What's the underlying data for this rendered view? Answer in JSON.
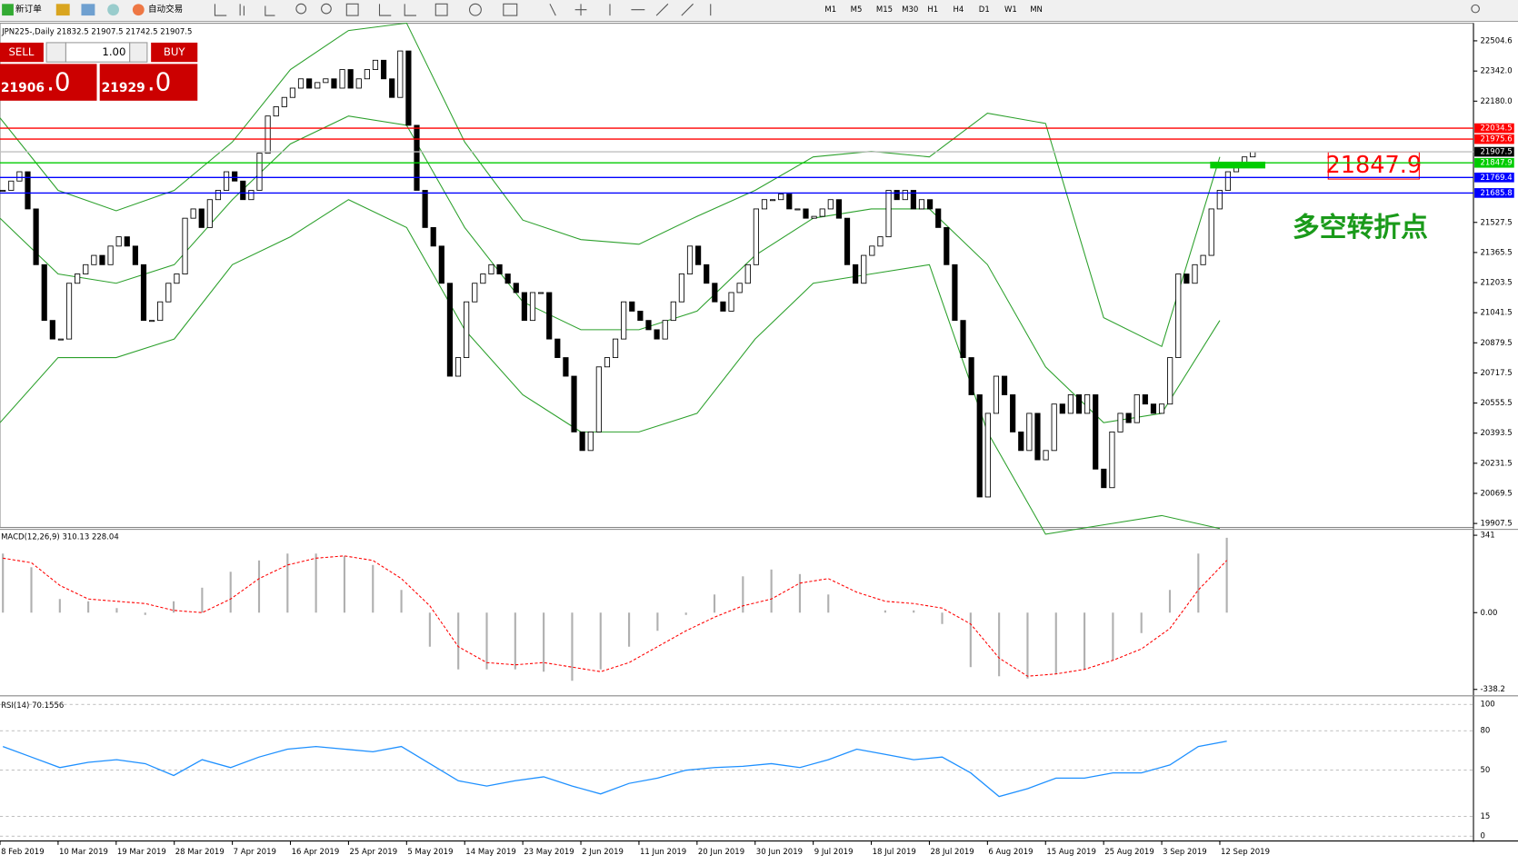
{
  "toolbar": {
    "new_order": "新订单",
    "auto_trading": "自动交易",
    "timeframes": [
      "M1",
      "M5",
      "M15",
      "M30",
      "H1",
      "H4",
      "D1",
      "W1",
      "MN"
    ]
  },
  "trade_panel": {
    "sell": "SELL",
    "buy": "BUY",
    "lot": "1.00",
    "sell_price": "21906",
    "sell_frac": ".0",
    "buy_price": "21929",
    "buy_frac": ".0"
  },
  "chart_data": {
    "type": "candlestick",
    "header": "JPN225-,Daily  21832.5 21907.5 21742.5 21907.5",
    "closes": [
      21700,
      21750,
      21800,
      21600,
      21300,
      21000,
      20900,
      20900,
      21200,
      21250,
      21300,
      21350,
      21300,
      21400,
      21450,
      21400,
      21300,
      21000,
      21000,
      21100,
      21200,
      21250,
      21550,
      21600,
      21500,
      21650,
      21700,
      21800,
      21750,
      21650,
      21700,
      21900,
      22100,
      22150,
      22200,
      22250,
      22300,
      22250,
      22280,
      22300,
      22250,
      22350,
      22250,
      22300,
      22350,
      22400,
      22300,
      22200,
      22450,
      22050,
      21700,
      21500,
      21400,
      21200,
      20700,
      20800,
      21100,
      21200,
      21250,
      21300,
      21250,
      21200,
      21150,
      21000,
      21150,
      21150,
      20900,
      20800,
      20700,
      20400,
      20300,
      20400,
      20750,
      20800,
      20900,
      21100,
      21050,
      21000,
      20950,
      20900,
      21000,
      21100,
      21250,
      21400,
      21300,
      21200,
      21100,
      21050,
      21150,
      21200,
      21300,
      21600,
      21650,
      21650,
      21680,
      21600,
      21600,
      21550,
      21560,
      21600,
      21650,
      21550,
      21300,
      21200,
      21350,
      21400,
      21450,
      21700,
      21650,
      21700,
      21600,
      21650,
      21600,
      21500,
      21300,
      21000,
      20800,
      20600,
      20050,
      20500,
      20700,
      20600,
      20400,
      20300,
      20500,
      20250,
      20300,
      20550,
      20500,
      20600,
      20500,
      20600,
      20200,
      20100,
      20400,
      20500,
      20450,
      20600,
      20550,
      20500,
      20550,
      20800,
      21250,
      21200,
      21300,
      21350,
      21600,
      21700,
      21800,
      21850,
      21880,
      21907.5
    ],
    "bands": {
      "upper": [
        22090,
        21700,
        21590,
        21700,
        21960,
        22350,
        22560,
        22600,
        21960,
        21540,
        21435,
        21410,
        21560,
        21700,
        21880,
        21910,
        21880,
        22115,
        22060,
        21015,
        20860,
        21880
      ],
      "middle": [
        21550,
        21250,
        21200,
        21300,
        21650,
        21950,
        22100,
        22050,
        21500,
        21100,
        20950,
        20950,
        21050,
        21350,
        21550,
        21600,
        21600,
        21300,
        20750,
        20450,
        20500,
        21000
      ],
      "lower": [
        20450,
        20800,
        20800,
        20900,
        21300,
        21450,
        21650,
        21500,
        20950,
        20600,
        20400,
        20400,
        20500,
        20900,
        21200,
        21250,
        21300,
        20400,
        19850,
        19900,
        19950,
        19880
      ],
      "color": "#2ca02c"
    },
    "ylim": [
      19886,
      22599
    ],
    "yticks": [
      22504.6,
      {
        "value": 22342,
        "label": "22342.0"
      },
      {
        "value": 22180,
        "label": "22180.0"
      },
      21527.5,
      21365.5,
      21203.5,
      21041.5,
      20879.5,
      20717.5,
      20555.5,
      20393.5,
      20231.5,
      20069.5,
      19907.5
    ],
    "levels": [
      {
        "value": 22034.5,
        "color": "#ff0000"
      },
      {
        "value": 21975.6,
        "color": "#ff0000"
      },
      {
        "value": 21907.5,
        "color": "#000000"
      },
      {
        "value": 21847.9,
        "color": "#00cc00"
      },
      {
        "value": 21769.4,
        "color": "#0000ff"
      },
      {
        "value": 21685.8,
        "color": "#0000ff"
      }
    ],
    "note": "多空转折点",
    "dates": [
      "8 Feb 2019",
      "10 Mar 2019",
      "19 Mar 2019",
      "28 Mar 2019",
      "7 Apr 2019",
      "16 Apr 2019",
      "25 Apr 2019",
      "5 May 2019",
      "14 May 2019",
      "23 May 2019",
      "2 Jun 2019",
      "11 Jun 2019",
      "20 Jun 2019",
      "30 Jun 2019",
      "9 Jul 2019",
      "18 Jul 2019",
      "28 Jul 2019",
      "6 Aug 2019",
      "15 Aug 2019",
      "25 Aug 2019",
      "3 Sep 2019",
      "12 Sep 2019"
    ],
    "macd": {
      "label": "MACD(12,26,9) 310.13 228.04",
      "ylim": [
        -358,
        354
      ],
      "yticks": [
        341,
        {
          "value": 0,
          "label": "0.00"
        },
        -338.2
      ],
      "hist": [
        260,
        200,
        60,
        50,
        20,
        -10,
        50,
        110,
        180,
        230,
        260,
        260,
        250,
        210,
        100,
        -150,
        -250,
        -250,
        -250,
        -260,
        -300,
        -250,
        -150,
        -80,
        -10,
        80,
        160,
        190,
        170,
        80,
        0,
        10,
        10,
        -50,
        -240,
        -280,
        -290,
        -270,
        -250,
        -210,
        -90,
        100,
        260,
        330
      ],
      "signal": [
        240,
        220,
        120,
        60,
        50,
        40,
        10,
        0,
        60,
        150,
        210,
        240,
        250,
        230,
        150,
        30,
        -150,
        -220,
        -230,
        -220,
        -240,
        -260,
        -220,
        -150,
        -80,
        -20,
        30,
        60,
        130,
        150,
        90,
        50,
        40,
        20,
        -50,
        -200,
        -280,
        -270,
        -250,
        -210,
        -160,
        -70,
        100,
        230
      ]
    },
    "rsi": {
      "label": "RSI(14) 70.1556",
      "ylim": [
        -3,
        105
      ],
      "yticks": [
        100,
        80,
        50,
        15,
        0
      ],
      "color": "#1e90ff",
      "values": [
        68,
        60,
        52,
        56,
        58,
        55,
        46,
        58,
        52,
        60,
        66,
        68,
        66,
        64,
        68,
        55,
        42,
        38,
        42,
        45,
        38,
        32,
        40,
        44,
        50,
        52,
        53,
        55,
        52,
        58,
        66,
        62,
        58,
        60,
        48,
        30,
        36,
        44,
        44,
        48,
        48,
        54,
        68,
        72
      ]
    }
  }
}
